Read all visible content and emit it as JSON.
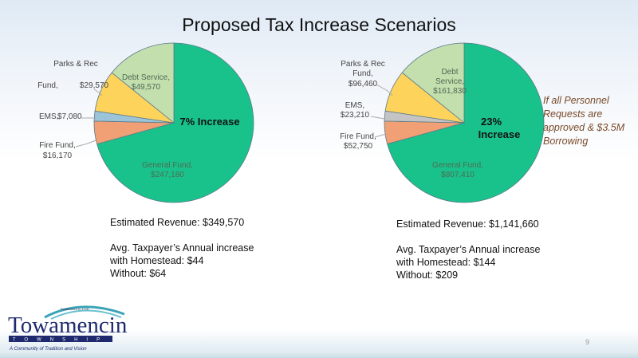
{
  "title": "Proposed Tax Increase Scenarios",
  "chart_data": [
    {
      "type": "pie",
      "center_label": "7% Increase",
      "start": "top",
      "direction": "clockwise",
      "slices": [
        {
          "label": "General Fund,",
          "value_label": "$247,180",
          "value": 247180,
          "color": "#19c28b"
        },
        {
          "label": "Fire Fund,",
          "value_label": "$16,170",
          "value": 16170,
          "color": "#f0a074"
        },
        {
          "label": "EMS,",
          "value_label": "$7,080",
          "value": 7080,
          "color": "#9cc4d8"
        },
        {
          "label": "Parks & Rec Fund,",
          "value_label": "$29,570",
          "value": 29570,
          "color": "#fdd35c"
        },
        {
          "label": "Debt Service,",
          "value_label": "$49,570",
          "value": 49570,
          "color": "#c3dfae"
        }
      ]
    },
    {
      "type": "pie",
      "center_label": "23% Increase",
      "start": "top",
      "direction": "clockwise",
      "slices": [
        {
          "label": "General Fund,",
          "value_label": "$807,410",
          "value": 807410,
          "color": "#19c28b"
        },
        {
          "label": "Fire Fund,",
          "value_label": "$52,750",
          "value": 52750,
          "color": "#f0a074"
        },
        {
          "label": "EMS,",
          "value_label": "$23,210",
          "value": 23210,
          "color": "#c4c4c4"
        },
        {
          "label": "Parks & Rec Fund,",
          "value_label": "$96,460",
          "value": 96460,
          "color": "#fdd35c"
        },
        {
          "label": "Debt Service,",
          "value_label": "$161,830",
          "value": 161830,
          "color": "#c3dfae"
        }
      ]
    }
  ],
  "note": "If all Personnel Requests are approved & $3.5M Borrowing",
  "left_info": {
    "revenue": "Estimated Revenue: $349,570",
    "line1": "Avg. Taxpayer’s Annual increase",
    "line2": "with Homestead: $44",
    "line3": "Without: $64"
  },
  "right_info": {
    "revenue": "Estimated Revenue: $1,141,660",
    "line1": "Avg. Taxpayer’s Annual increase",
    "line2": "with Homestead: $144",
    "line3": "Without: $209"
  },
  "logo": {
    "name": "Towamencin",
    "sub": "TOWNSHIP",
    "established": "Established in 1728",
    "tagline": "A Community of Tradition and Vision"
  },
  "page_number": "9"
}
